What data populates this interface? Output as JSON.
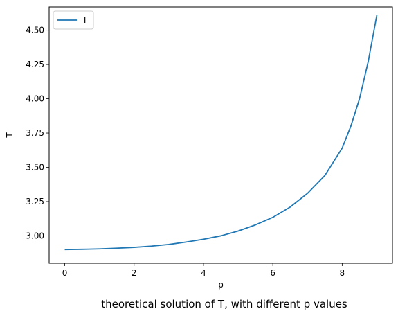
{
  "chart_data": {
    "type": "line",
    "title": "",
    "caption": "theoretical solution of T, with different p values",
    "xlabel": "p",
    "ylabel": "T",
    "xlim": [
      -0.45,
      9.45
    ],
    "ylim": [
      2.8,
      4.67
    ],
    "xticks": [
      0,
      2,
      4,
      6,
      8
    ],
    "xtick_labels": [
      "0",
      "2",
      "4",
      "6",
      "8"
    ],
    "yticks": [
      3.0,
      3.25,
      3.5,
      3.75,
      4.0,
      4.25,
      4.5
    ],
    "ytick_labels": [
      "3.00",
      "3.25",
      "3.50",
      "3.75",
      "4.00",
      "4.25",
      "4.50"
    ],
    "grid": false,
    "legend_position": "upper-left",
    "series": [
      {
        "name": "T",
        "color": "#1f77b4",
        "x": [
          0,
          0.5,
          1,
          1.5,
          2,
          2.5,
          3,
          3.5,
          4,
          4.5,
          5,
          5.5,
          6,
          6.5,
          7,
          7.5,
          8,
          8.25,
          8.5,
          8.75,
          9
        ],
        "y": [
          2.9,
          2.902,
          2.905,
          2.91,
          2.916,
          2.925,
          2.937,
          2.955,
          2.975,
          3.0,
          3.035,
          3.08,
          3.135,
          3.21,
          3.31,
          3.44,
          3.64,
          3.8,
          4.0,
          4.27,
          4.61
        ]
      }
    ]
  }
}
